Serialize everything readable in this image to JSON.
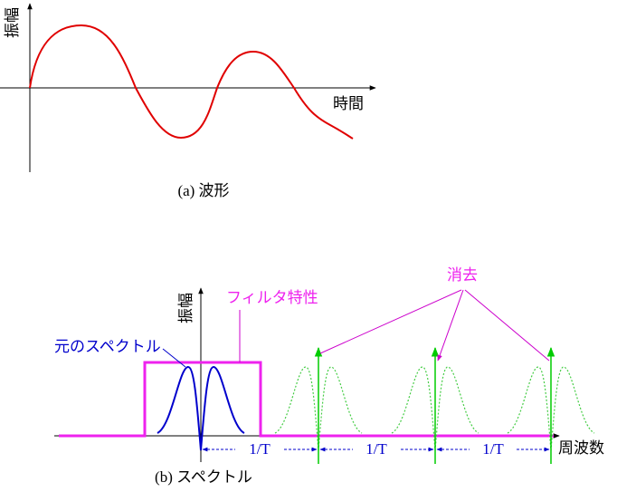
{
  "panel_a": {
    "y_label": "振幅",
    "x_label": "時間",
    "caption": "(a) 波形"
  },
  "panel_b": {
    "y_label": "振幅",
    "filter_label": "フィルタ特性",
    "spectrum_label": "元のスペクトル",
    "removed_label": "消去",
    "period_labels": [
      "1/T",
      "1/T",
      "1/T"
    ],
    "x_label": "周波数",
    "caption": "(b) スペクトル"
  }
}
